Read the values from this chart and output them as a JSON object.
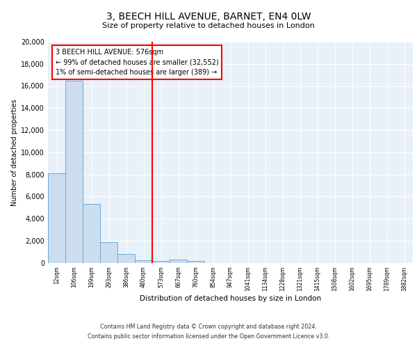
{
  "title": "3, BEECH HILL AVENUE, BARNET, EN4 0LW",
  "subtitle": "Size of property relative to detached houses in London",
  "xlabel": "Distribution of detached houses by size in London",
  "ylabel": "Number of detached properties",
  "bar_color": "#ccddf0",
  "bar_edge_color": "#6aaad4",
  "background_color": "#e8f0f8",
  "grid_color": "#ffffff",
  "vline_color": "red",
  "vline_x": 5.5,
  "annotation_line1": "3 BEECH HILL AVENUE: 576sqm",
  "annotation_line2": "← 99% of detached houses are smaller (32,552)",
  "annotation_line3": "1% of semi-detached houses are larger (389) →",
  "annotation_box_color": "#ffffff",
  "annotation_box_edge": "red",
  "categories": [
    "12sqm",
    "106sqm",
    "199sqm",
    "293sqm",
    "386sqm",
    "480sqm",
    "573sqm",
    "667sqm",
    "760sqm",
    "854sqm",
    "947sqm",
    "1041sqm",
    "1134sqm",
    "1228sqm",
    "1321sqm",
    "1415sqm",
    "1508sqm",
    "1602sqm",
    "1695sqm",
    "1789sqm",
    "1882sqm"
  ],
  "values": [
    8100,
    16500,
    5300,
    1850,
    800,
    250,
    150,
    300,
    150,
    0,
    0,
    0,
    0,
    0,
    0,
    0,
    0,
    0,
    0,
    0,
    0
  ],
  "ylim": [
    0,
    20000
  ],
  "yticks": [
    0,
    2000,
    4000,
    6000,
    8000,
    10000,
    12000,
    14000,
    16000,
    18000,
    20000
  ],
  "footer_line1": "Contains HM Land Registry data © Crown copyright and database right 2024.",
  "footer_line2": "Contains public sector information licensed under the Open Government Licence v3.0."
}
